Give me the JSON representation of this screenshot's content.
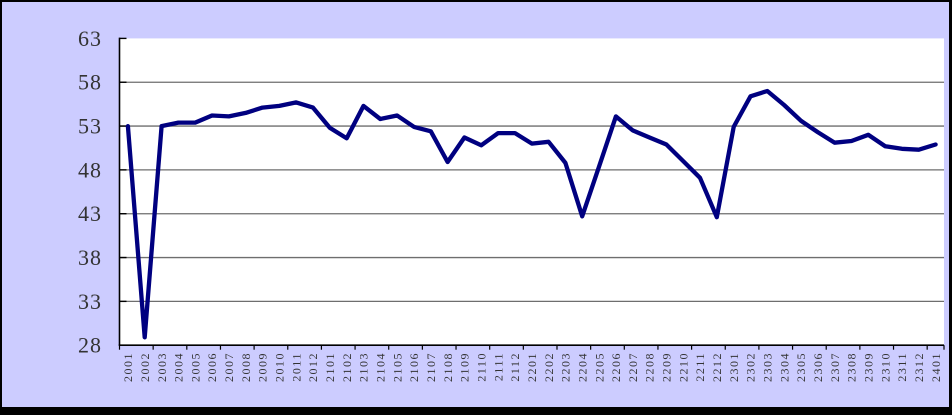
{
  "chart_data": {
    "type": "line",
    "title": "",
    "xlabel": "",
    "ylabel": "",
    "categories": [
      "2001",
      "2002",
      "2003",
      "2004",
      "2005",
      "2006",
      "2007",
      "2008",
      "2009",
      "2010",
      "2011",
      "2012",
      "2101",
      "2102",
      "2103",
      "2104",
      "2105",
      "2106",
      "2107",
      "2108",
      "2109",
      "2110",
      "2111",
      "2112",
      "2201",
      "2202",
      "2203",
      "2204",
      "2205",
      "2206",
      "2207",
      "2208",
      "2209",
      "2210",
      "2211",
      "2212",
      "2301",
      "2302",
      "2303",
      "2304",
      "2305",
      "2306",
      "2307",
      "2308",
      "2309",
      "2310",
      "2311",
      "2312",
      "2401"
    ],
    "values": [
      53.0,
      28.9,
      53.0,
      53.4,
      53.4,
      54.2,
      54.1,
      54.5,
      55.1,
      55.3,
      55.7,
      55.1,
      52.8,
      51.6,
      55.3,
      53.8,
      54.2,
      52.9,
      52.4,
      48.9,
      51.7,
      50.8,
      52.2,
      52.2,
      51.0,
      51.2,
      48.8,
      42.7,
      48.4,
      54.1,
      52.5,
      51.7,
      50.9,
      49.0,
      47.1,
      42.6,
      52.9,
      56.4,
      57.0,
      55.4,
      53.6,
      52.3,
      51.1,
      51.3,
      52.0,
      50.7,
      50.4,
      50.3,
      50.9
    ],
    "ylim": [
      28,
      63
    ],
    "yticks": [
      28,
      33,
      38,
      43,
      48,
      53,
      58,
      63
    ],
    "x_tick_interval": 2,
    "x_label_rotation_deg": -90,
    "grid": true,
    "legend": "none"
  },
  "colors": {
    "page_background": "#ccccff",
    "plot_background": "#ffffff",
    "series_line": "#000080",
    "gridline": "#6e6e6e",
    "axis": "#000000",
    "tick": "#000000",
    "label_text": "#333333",
    "frame_border": "#000000"
  }
}
